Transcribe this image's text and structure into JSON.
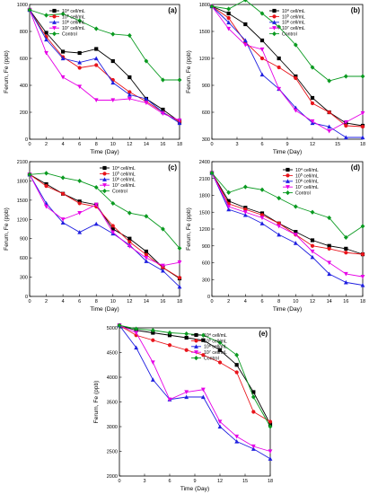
{
  "figure": {
    "panels": [
      {
        "label": "(a)",
        "type": "line",
        "xlabel": "Time (Day)",
        "ylabel": "Ferum, Fe (ppb)",
        "xlim": [
          0,
          18
        ],
        "xticks": [
          0,
          2,
          4,
          6,
          8,
          10,
          12,
          14,
          16,
          18
        ],
        "ylim": [
          0,
          1000
        ],
        "yticks": [
          0,
          200,
          400,
          600,
          800,
          1000
        ],
        "legend_position": "top-left",
        "x": [
          0,
          2,
          4,
          6,
          8,
          10,
          12,
          14,
          16,
          18
        ],
        "series": [
          {
            "name": "10^4 cell/mL",
            "color": "#000000",
            "marker": "square",
            "values": [
              960,
              790,
              650,
              640,
              670,
              580,
              460,
              300,
              220,
              130
            ]
          },
          {
            "name": "10^5 cell/mL",
            "color": "#e8141b",
            "marker": "circle",
            "values": [
              960,
              760,
              610,
              530,
              550,
              440,
              350,
              280,
              200,
              130
            ]
          },
          {
            "name": "10^6 cell/mL",
            "color": "#1f1fe0",
            "marker": "triangle",
            "values": [
              960,
              740,
              600,
              570,
              600,
              420,
              330,
              300,
              200,
              120
            ]
          },
          {
            "name": "10^7 cell/mL",
            "color": "#e600e6",
            "marker": "tri-down",
            "values": [
              960,
              640,
              460,
              390,
              290,
              290,
              300,
              270,
              190,
              140
            ]
          },
          {
            "name": "Control",
            "color": "#0a9a20",
            "marker": "diamond",
            "values": [
              960,
              920,
              930,
              880,
              820,
              780,
              770,
              580,
              440,
              440
            ]
          }
        ]
      },
      {
        "label": "(b)",
        "type": "line",
        "xlabel": "Time (Day)",
        "ylabel": "Ferum, Fe (ppb)",
        "xlim": [
          0,
          18
        ],
        "xticks": [
          0,
          3,
          6,
          9,
          12,
          15,
          18
        ],
        "ylim": [
          300,
          1800
        ],
        "yticks": [
          300,
          600,
          900,
          1200,
          1500,
          1800
        ],
        "legend_position": "top-right",
        "x": [
          0,
          2,
          4,
          6,
          8,
          10,
          12,
          14,
          16,
          18
        ],
        "series": [
          {
            "name": "10^4 cell/mL",
            "color": "#000000",
            "marker": "square",
            "values": [
              1780,
              1700,
              1580,
              1400,
              1200,
              1000,
              760,
              600,
              480,
              450
            ]
          },
          {
            "name": "10^5 cell/mL",
            "color": "#e8141b",
            "marker": "circle",
            "values": [
              1780,
              1650,
              1380,
              1200,
              1100,
              980,
              700,
              600,
              450,
              440
            ]
          },
          {
            "name": "10^6 cell/mL",
            "color": "#1f1fe0",
            "marker": "triangle",
            "values": [
              1780,
              1600,
              1400,
              1020,
              860,
              650,
              480,
              440,
              320,
              320
            ]
          },
          {
            "name": "10^7 cell/mL",
            "color": "#e600e6",
            "marker": "tri-down",
            "values": [
              1780,
              1530,
              1350,
              1300,
              860,
              620,
              500,
              390,
              490,
              590
            ]
          },
          {
            "name": "Control",
            "color": "#0a9a20",
            "marker": "diamond",
            "values": [
              1780,
              1750,
              1850,
              1700,
              1550,
              1350,
              1100,
              950,
              1000,
              1000
            ]
          }
        ]
      },
      {
        "label": "(c)",
        "type": "line",
        "xlabel": "Time (Day)",
        "ylabel": "Ferum, Fe (ppb)",
        "xlim": [
          0,
          18
        ],
        "xticks": [
          0,
          2,
          4,
          6,
          8,
          10,
          12,
          14,
          16,
          18
        ],
        "ylim": [
          0,
          2100
        ],
        "yticks": [
          0,
          300,
          600,
          900,
          1200,
          1500,
          1800,
          2100
        ],
        "legend_position": "top-right",
        "x": [
          0,
          2,
          4,
          6,
          8,
          10,
          12,
          14,
          16,
          18
        ],
        "series": [
          {
            "name": "10^4 cell/mL",
            "color": "#000000",
            "marker": "square",
            "values": [
              1900,
              1750,
              1600,
              1480,
              1430,
              1050,
              900,
              700,
              450,
              280
            ]
          },
          {
            "name": "10^5 cell/mL",
            "color": "#e8141b",
            "marker": "circle",
            "values": [
              1900,
              1720,
              1600,
              1450,
              1400,
              1100,
              850,
              650,
              450,
              290
            ]
          },
          {
            "name": "10^6 cell/mL",
            "color": "#1f1fe0",
            "marker": "triangle",
            "values": [
              1900,
              1450,
              1150,
              1000,
              1130,
              980,
              800,
              550,
              400,
              150
            ]
          },
          {
            "name": "10^7 cell/mL",
            "color": "#e600e6",
            "marker": "tri-down",
            "values": [
              1900,
              1400,
              1200,
              1300,
              1430,
              1000,
              780,
              600,
              480,
              530
            ]
          },
          {
            "name": "Control",
            "color": "#0a9a20",
            "marker": "diamond",
            "values": [
              1900,
              1920,
              1850,
              1800,
              1700,
              1450,
              1300,
              1250,
              1050,
              750
            ]
          }
        ]
      },
      {
        "label": "(d)",
        "type": "line",
        "xlabel": "Time (Day)",
        "ylabel": "Ferum, Fe (ppb)",
        "xlim": [
          0,
          18
        ],
        "xticks": [
          0,
          2,
          4,
          6,
          8,
          10,
          12,
          14,
          16,
          18
        ],
        "ylim": [
          0,
          2400
        ],
        "yticks": [
          0,
          300,
          600,
          900,
          1200,
          1500,
          1800,
          2100,
          2400
        ],
        "legend_position": "top-right",
        "x": [
          0,
          2,
          4,
          6,
          8,
          10,
          12,
          14,
          16,
          18
        ],
        "series": [
          {
            "name": "10^4 cell/mL",
            "color": "#000000",
            "marker": "square",
            "values": [
              2200,
              1700,
              1580,
              1480,
              1300,
              1150,
              1000,
              900,
              850,
              750
            ]
          },
          {
            "name": "10^5 cell/mL",
            "color": "#e8141b",
            "marker": "circle",
            "values": [
              2200,
              1650,
              1550,
              1450,
              1300,
              1100,
              900,
              850,
              780,
              750
            ]
          },
          {
            "name": "10^6 cell/mL",
            "color": "#1f1fe0",
            "marker": "triangle",
            "values": [
              2200,
              1550,
              1450,
              1300,
              1100,
              950,
              700,
              400,
              250,
              200
            ]
          },
          {
            "name": "10^7 cell/mL",
            "color": "#e600e6",
            "marker": "tri-down",
            "values": [
              2200,
              1600,
              1500,
              1400,
              1250,
              1100,
              800,
              600,
              400,
              350
            ]
          },
          {
            "name": "Control",
            "color": "#0a9a20",
            "marker": "diamond",
            "values": [
              2200,
              1850,
              1950,
              1900,
              1750,
              1600,
              1500,
              1400,
              1050,
              1250
            ]
          }
        ]
      },
      {
        "label": "(e)",
        "type": "line",
        "xlabel": "Time (Day)",
        "ylabel": "Ferum, Fe (ppb)",
        "xlim": [
          0,
          18
        ],
        "xticks": [
          0,
          3,
          6,
          9,
          12,
          15,
          18
        ],
        "ylim": [
          2000,
          5000
        ],
        "yticks": [
          2000,
          2500,
          3000,
          3500,
          4000,
          4500,
          5000
        ],
        "legend_position": "top-right",
        "x": [
          0,
          2,
          4,
          6,
          8,
          10,
          12,
          14,
          16,
          18
        ],
        "series": [
          {
            "name": "10^4 cell/mL",
            "color": "#000000",
            "marker": "square",
            "values": [
              5050,
              4950,
              4900,
              4850,
              4800,
              4750,
              4550,
              4250,
              3700,
              3050
            ]
          },
          {
            "name": "10^5 cell/mL",
            "color": "#e8141b",
            "marker": "circle",
            "values": [
              5050,
              4850,
              4750,
              4650,
              4550,
              4450,
              4300,
              4100,
              3300,
              3100
            ]
          },
          {
            "name": "10^6 cell/mL",
            "color": "#1f1fe0",
            "marker": "triangle",
            "values": [
              5050,
              4600,
              3950,
              3550,
              3600,
              3600,
              3000,
              2700,
              2550,
              2350
            ]
          },
          {
            "name": "10^7 cell/mL",
            "color": "#e600e6",
            "marker": "tri-down",
            "values": [
              5050,
              4900,
              4300,
              3550,
              3700,
              3750,
              3100,
              2800,
              2600,
              2500
            ]
          },
          {
            "name": "Control",
            "color": "#0a9a20",
            "marker": "diamond",
            "values": [
              5050,
              4980,
              4950,
              4900,
              4880,
              4850,
              4700,
              4450,
              3600,
              3000
            ]
          }
        ]
      }
    ]
  }
}
